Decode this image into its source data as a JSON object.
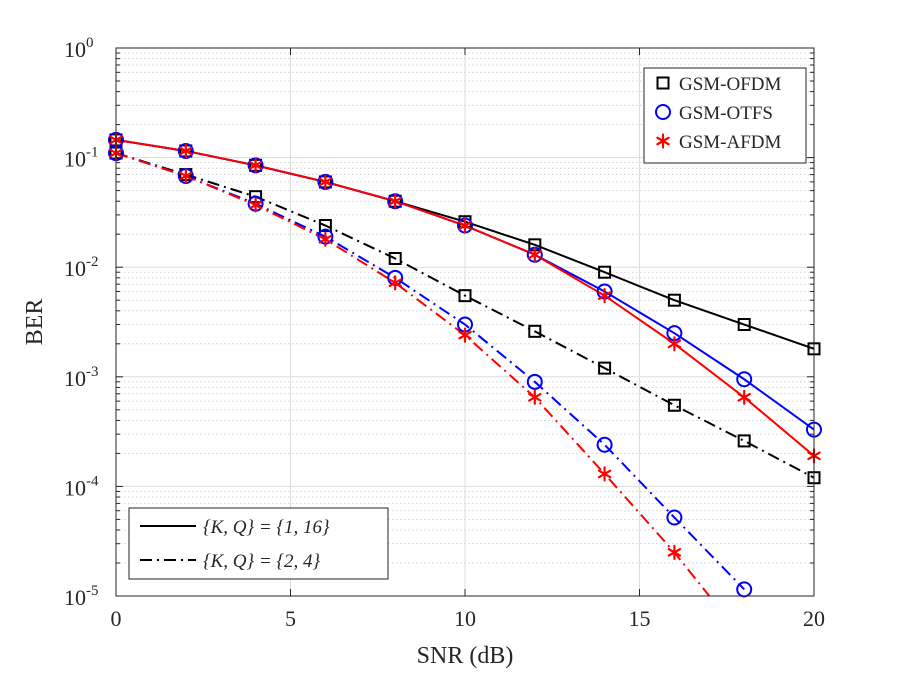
{
  "chart_data": {
    "type": "line",
    "title": "",
    "xlabel": "SNR (dB)",
    "ylabel": "BER",
    "xscale": "linear",
    "yscale": "log",
    "xlim": [
      0,
      20
    ],
    "ylim": [
      1e-05,
      1
    ],
    "grid": true,
    "x_ticks": [
      0,
      5,
      10,
      15,
      20
    ],
    "y_ticks": [
      {
        "value": 1,
        "base": "10",
        "exp": "0"
      },
      {
        "value": 0.1,
        "base": "10",
        "exp": "-1"
      },
      {
        "value": 0.01,
        "base": "10",
        "exp": "-2"
      },
      {
        "value": 0.001,
        "base": "10",
        "exp": "-3"
      },
      {
        "value": 0.0001,
        "base": "10",
        "exp": "-4"
      },
      {
        "value": 1e-05,
        "base": "10",
        "exp": "-5"
      }
    ],
    "colors": {
      "OFDM": "#000000",
      "OTFS": "#0000ff",
      "AFDM": "#ff0000"
    },
    "marker_legend": {
      "position": "top-right",
      "entries": [
        {
          "label": "GSM-OFDM",
          "marker": "square",
          "color": "#000000"
        },
        {
          "label": "GSM-OTFS",
          "marker": "circle",
          "color": "#0000ff"
        },
        {
          "label": "GSM-AFDM",
          "marker": "asterisk",
          "color": "#ff0000"
        }
      ]
    },
    "style_legend": {
      "position": "bottom-left",
      "entries": [
        {
          "label": "{K, Q} = {1, 16}",
          "dash": "solid"
        },
        {
          "label": "{K, Q} = {2, 4}",
          "dash": "dashdot"
        }
      ]
    },
    "series": [
      {
        "name": "GSM-OFDM {K,Q}={1,16}",
        "scheme": "OFDM",
        "marker": "square",
        "color": "#000000",
        "dash": "solid",
        "x": [
          0,
          2,
          4,
          6,
          8,
          10,
          12,
          14,
          16,
          18,
          20
        ],
        "y": [
          0.145,
          0.115,
          0.085,
          0.06,
          0.04,
          0.026,
          0.016,
          0.009,
          0.005,
          0.003,
          0.0018
        ]
      },
      {
        "name": "GSM-OTFS {K,Q}={1,16}",
        "scheme": "OTFS",
        "marker": "circle",
        "color": "#0000ff",
        "dash": "solid",
        "x": [
          0,
          2,
          4,
          6,
          8,
          10,
          12,
          14,
          16,
          18,
          20
        ],
        "y": [
          0.145,
          0.115,
          0.085,
          0.06,
          0.04,
          0.024,
          0.013,
          0.006,
          0.0025,
          0.00095,
          0.00033
        ]
      },
      {
        "name": "GSM-AFDM {K,Q}={1,16}",
        "scheme": "AFDM",
        "marker": "asterisk",
        "color": "#ff0000",
        "dash": "solid",
        "x": [
          0,
          2,
          4,
          6,
          8,
          10,
          12,
          14,
          16,
          18,
          20
        ],
        "y": [
          0.145,
          0.115,
          0.085,
          0.06,
          0.04,
          0.024,
          0.013,
          0.0055,
          0.002,
          0.00065,
          0.00019
        ]
      },
      {
        "name": "GSM-OFDM {K,Q}={2,4}",
        "scheme": "OFDM",
        "marker": "square",
        "color": "#000000",
        "dash": "dashdot",
        "x": [
          0,
          2,
          4,
          6,
          8,
          10,
          12,
          14,
          16,
          18,
          20
        ],
        "y": [
          0.11,
          0.07,
          0.044,
          0.024,
          0.012,
          0.0055,
          0.0026,
          0.0012,
          0.00055,
          0.00026,
          0.00012
        ]
      },
      {
        "name": "GSM-OTFS {K,Q}={2,4}",
        "scheme": "OTFS",
        "marker": "circle",
        "color": "#0000ff",
        "dash": "dashdot",
        "x": [
          0,
          2,
          4,
          6,
          8,
          10,
          12,
          14,
          16,
          18
        ],
        "y": [
          0.11,
          0.068,
          0.038,
          0.019,
          0.008,
          0.003,
          0.0009,
          0.00024,
          5.2e-05,
          1.15e-05
        ]
      },
      {
        "name": "GSM-AFDM {K,Q}={2,4}",
        "scheme": "AFDM",
        "marker": "asterisk",
        "color": "#ff0000",
        "dash": "dashdot",
        "x": [
          0,
          2,
          4,
          6,
          8,
          10,
          12,
          14,
          16,
          17
        ],
        "y": [
          0.11,
          0.068,
          0.037,
          0.018,
          0.0072,
          0.0024,
          0.00065,
          0.00013,
          2.5e-05,
          1e-05
        ],
        "marker_count": 9
      }
    ]
  }
}
